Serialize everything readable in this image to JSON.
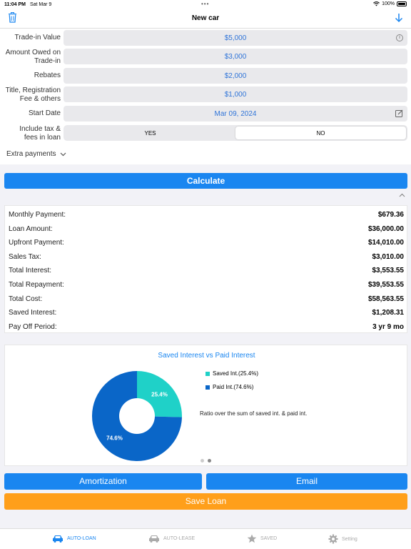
{
  "status_bar": {
    "time": "11:04 PM",
    "date": "Sat Mar 9",
    "battery": "100%"
  },
  "nav": {
    "title": "New car"
  },
  "form": {
    "trade_in": {
      "label": "Trade-in Value",
      "value": "$5,000"
    },
    "amount_owed": {
      "label_line1": "Amount Owed on",
      "label_line2": "Trade-in",
      "value": "$3,000"
    },
    "rebates": {
      "label": "Rebates",
      "value": "$2,000"
    },
    "fees": {
      "label_line1": "Title, Registration",
      "label_line2": "Fee & others",
      "value": "$1,000"
    },
    "start_date": {
      "label": "Start Date",
      "value": "Mar 09, 2024"
    },
    "include_tax": {
      "label_line1": "Include tax &",
      "label_line2": "fees in loan",
      "options": [
        "YES",
        "NO"
      ],
      "selected": "NO"
    }
  },
  "extra_payments": {
    "label": "Extra payments"
  },
  "calculate_label": "Calculate",
  "results": [
    {
      "key": "Monthly Payment:",
      "value": "$679.36"
    },
    {
      "key": "Loan Amount:",
      "value": "$36,000.00"
    },
    {
      "key": "Upfront Payment:",
      "value": "$14,010.00"
    },
    {
      "key": "Sales Tax:",
      "value": "$3,010.00"
    },
    {
      "key": "Total Interest:",
      "value": "$3,553.55"
    },
    {
      "key": "Total Repayment:",
      "value": "$39,553.55"
    },
    {
      "key": "Total Cost:",
      "value": "$58,563.55"
    },
    {
      "key": "Saved Interest:",
      "value": "$1,208.31"
    },
    {
      "key": "Pay Off Period:",
      "value": "3 yr 9 mo"
    }
  ],
  "chart_data": {
    "type": "pie",
    "title": "Saved Interest vs Paid Interest",
    "slices": [
      {
        "name": "Saved Int.(25.4%)",
        "label": "25.4%",
        "value": 25.4,
        "color": "#1fd1c8"
      },
      {
        "name": "Paid Int.(74.6%)",
        "label": "74.6%",
        "value": 74.6,
        "color": "#0a66c8"
      }
    ],
    "note": "Ratio over the sum of saved int. & paid int."
  },
  "buttons": {
    "amortization": "Amortization",
    "email": "Email",
    "save": "Save Loan"
  },
  "tabs": [
    {
      "label": "AUTO-LOAN",
      "active": true,
      "icon": "car-icon"
    },
    {
      "label": "AUTO-LEASE",
      "active": false,
      "icon": "car-icon"
    },
    {
      "label": "SAVED",
      "active": false,
      "icon": "star-icon"
    },
    {
      "label": "Setting",
      "active": false,
      "icon": "gear-icon"
    }
  ],
  "colors": {
    "accent": "#1a86f0",
    "save": "#ff9f1a",
    "field_text": "#2f74d8"
  }
}
